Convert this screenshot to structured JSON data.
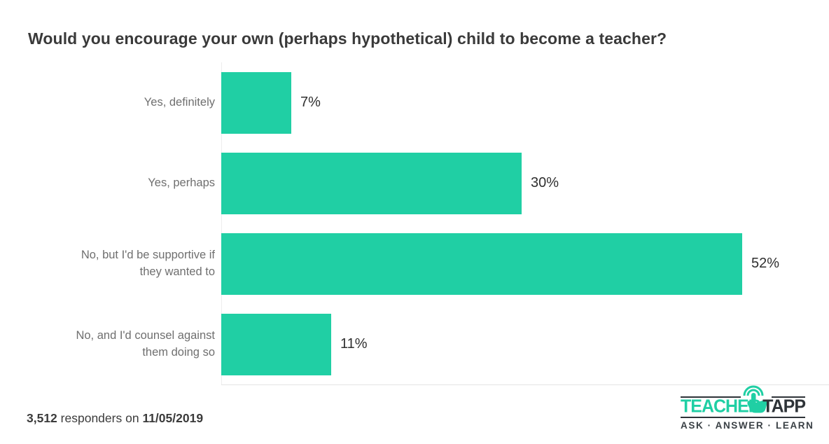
{
  "chart_data": {
    "type": "bar",
    "orientation": "horizontal",
    "title": "Would you encourage your own (perhaps hypothetical) child to become a teacher?",
    "categories": [
      "Yes, definitely",
      "Yes, perhaps",
      "No, but I'd be supportive if they wanted to",
      "No, and I'd counsel against them doing so"
    ],
    "values": [
      7,
      30,
      52,
      11
    ],
    "value_labels": [
      "7%",
      "30%",
      "52%",
      "11%"
    ],
    "xlim": [
      0,
      52
    ],
    "bar_color": "#20cfa4",
    "category_label_color": "#6f6f6f",
    "value_label_color": "#2f2f2f",
    "grid": false,
    "legend": false
  },
  "footer": {
    "count": "3,512",
    "text": "responders on",
    "date": "11/05/2019"
  },
  "logo": {
    "brand_left": "TEACHER",
    "brand_right": "TAPP",
    "tagline": "ASK · ANSWER · LEARN",
    "icon": "tap-hand-icon",
    "brand_green": "#20cfa4",
    "brand_dark": "#2e3338"
  }
}
